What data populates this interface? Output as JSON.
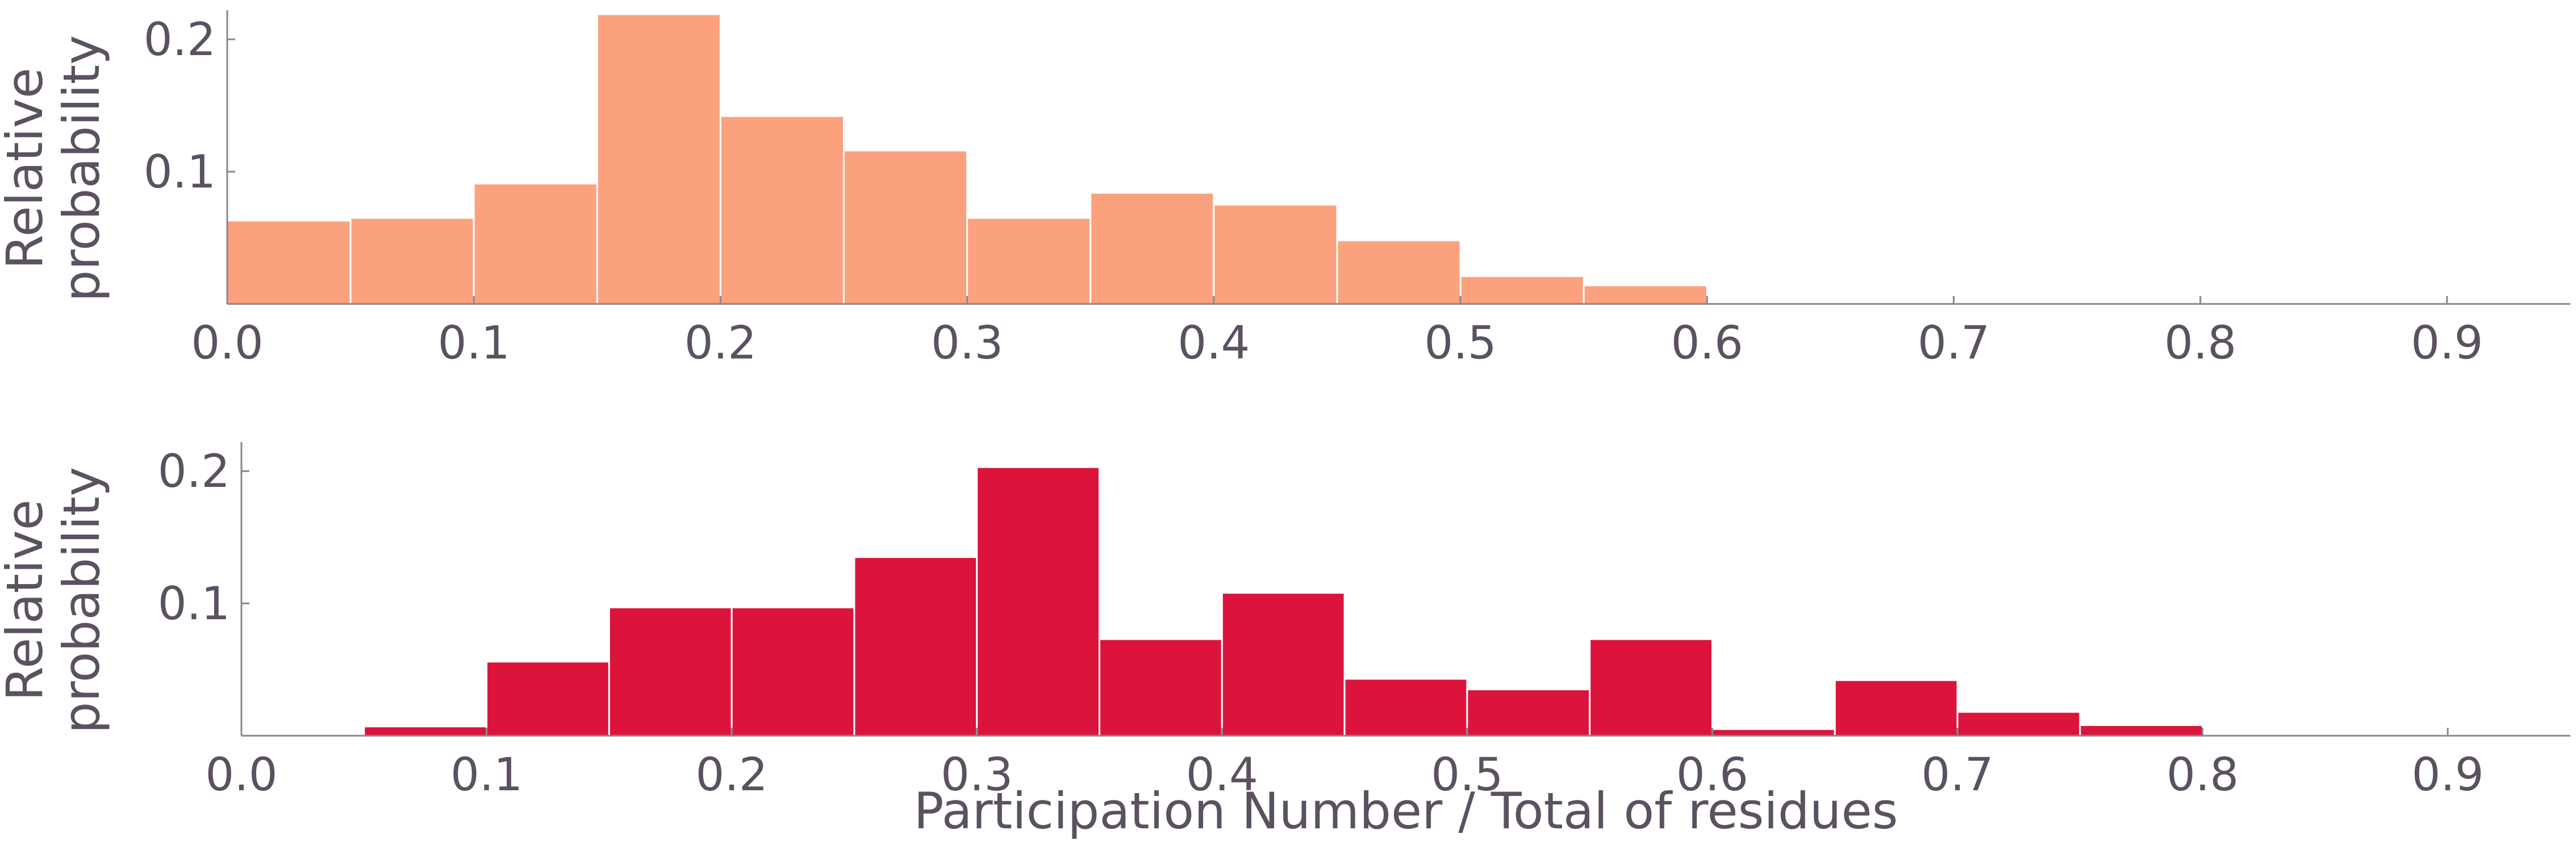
{
  "chart_data": [
    {
      "type": "bar",
      "panel": "top",
      "color": "#fca17d",
      "bin_edges": [
        0.0,
        0.05,
        0.1,
        0.15,
        0.2,
        0.25,
        0.3,
        0.35,
        0.4,
        0.45,
        0.5,
        0.55,
        0.6
      ],
      "values": [
        0.063,
        0.065,
        0.091,
        0.219,
        0.142,
        0.116,
        0.065,
        0.084,
        0.075,
        0.048,
        0.021,
        0.014
      ],
      "xlabel": "",
      "ylabel": [
        "Relative",
        "probability"
      ],
      "xlim": [
        0.0,
        0.95
      ],
      "ylim": [
        0.0,
        0.222
      ],
      "xticks": [
        0.0,
        0.1,
        0.2,
        0.3,
        0.4,
        0.5,
        0.6,
        0.7,
        0.8,
        0.9
      ],
      "xtick_labels": [
        "0.0",
        "0.1",
        "0.2",
        "0.3",
        "0.4",
        "0.5",
        "0.6",
        "0.7",
        "0.8",
        "0.9"
      ],
      "yticks": [
        0.1,
        0.2
      ],
      "ytick_labels": [
        "0.1",
        "0.2"
      ],
      "grid": false
    },
    {
      "type": "bar",
      "panel": "bottom",
      "color": "#dc143c",
      "bin_edges": [
        0.05,
        0.1,
        0.15,
        0.2,
        0.25,
        0.3,
        0.35,
        0.4,
        0.45,
        0.5,
        0.55,
        0.6,
        0.65,
        0.7,
        0.75,
        0.8
      ],
      "values": [
        0.007,
        0.056,
        0.097,
        0.097,
        0.135,
        0.203,
        0.073,
        0.108,
        0.043,
        0.035,
        0.073,
        0.005,
        0.042,
        0.018,
        0.008
      ],
      "xlabel": "Participation Number / Total of residues",
      "ylabel": [
        "Relative",
        "probability"
      ],
      "xlim": [
        0.0,
        0.95
      ],
      "ylim": [
        0.0,
        0.222
      ],
      "xticks": [
        0.0,
        0.1,
        0.2,
        0.3,
        0.4,
        0.5,
        0.6,
        0.7,
        0.8,
        0.9
      ],
      "xtick_labels": [
        "0.0",
        "0.1",
        "0.2",
        "0.3",
        "0.4",
        "0.5",
        "0.6",
        "0.7",
        "0.8",
        "0.9"
      ],
      "yticks": [
        0.1,
        0.2
      ],
      "ytick_labels": [
        "0.1",
        "0.2"
      ],
      "grid": false
    }
  ]
}
